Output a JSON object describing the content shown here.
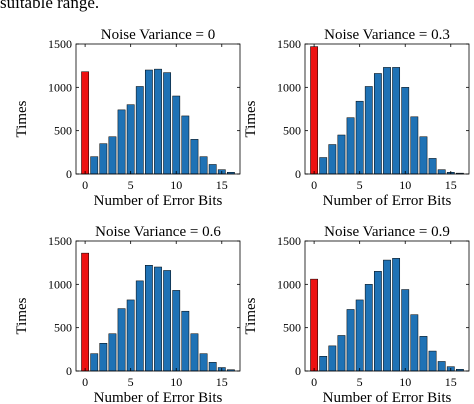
{
  "caption": "suitable range.",
  "colors": {
    "zero_bar": "#ee1111",
    "other_bar": "#1f72b5",
    "edge": "#000000"
  },
  "chart_data": [
    {
      "type": "bar",
      "title": "Noise Variance = 0",
      "xlabel": "Number of Error Bits",
      "ylabel": "Times",
      "ylim": [
        0,
        1500
      ],
      "yticks": [
        0,
        500,
        1000,
        1500
      ],
      "xticks": [
        0,
        5,
        10,
        15
      ],
      "categories": [
        0,
        1,
        2,
        3,
        4,
        5,
        6,
        7,
        8,
        9,
        10,
        11,
        12,
        13,
        14,
        15,
        16
      ],
      "values": [
        1180,
        200,
        350,
        430,
        740,
        800,
        1010,
        1200,
        1210,
        1170,
        900,
        670,
        400,
        200,
        110,
        50,
        20
      ]
    },
    {
      "type": "bar",
      "title": "Noise Variance = 0.3",
      "xlabel": "Number of Error Bits",
      "ylabel": "Times",
      "ylim": [
        0,
        1500
      ],
      "yticks": [
        0,
        500,
        1000,
        1500
      ],
      "xticks": [
        0,
        5,
        10,
        15
      ],
      "categories": [
        0,
        1,
        2,
        3,
        4,
        5,
        6,
        7,
        8,
        9,
        10,
        11,
        12,
        13,
        14,
        15,
        16
      ],
      "values": [
        1470,
        190,
        340,
        450,
        650,
        840,
        1010,
        1160,
        1230,
        1230,
        1000,
        660,
        430,
        180,
        50,
        20,
        10
      ]
    },
    {
      "type": "bar",
      "title": "Noise Variance = 0.6",
      "xlabel": "Number of Error Bits",
      "ylabel": "Times",
      "ylim": [
        0,
        1500
      ],
      "yticks": [
        0,
        500,
        1000,
        1500
      ],
      "xticks": [
        0,
        5,
        10,
        15
      ],
      "categories": [
        0,
        1,
        2,
        3,
        4,
        5,
        6,
        7,
        8,
        9,
        10,
        11,
        12,
        13,
        14,
        15,
        16
      ],
      "values": [
        1360,
        200,
        320,
        430,
        720,
        820,
        1040,
        1220,
        1200,
        1160,
        930,
        690,
        430,
        200,
        100,
        40,
        15
      ]
    },
    {
      "type": "bar",
      "title": "Noise Variance = 0.9",
      "xlabel": "Number of Error Bits",
      "ylabel": "Times",
      "ylim": [
        0,
        1500
      ],
      "yticks": [
        0,
        500,
        1000,
        1500
      ],
      "xticks": [
        0,
        5,
        10,
        15
      ],
      "categories": [
        0,
        1,
        2,
        3,
        4,
        5,
        6,
        7,
        8,
        9,
        10,
        11,
        12,
        13,
        14,
        15,
        16
      ],
      "values": [
        1060,
        170,
        290,
        410,
        710,
        820,
        1000,
        1150,
        1280,
        1300,
        940,
        650,
        400,
        230,
        110,
        50,
        20
      ]
    }
  ]
}
